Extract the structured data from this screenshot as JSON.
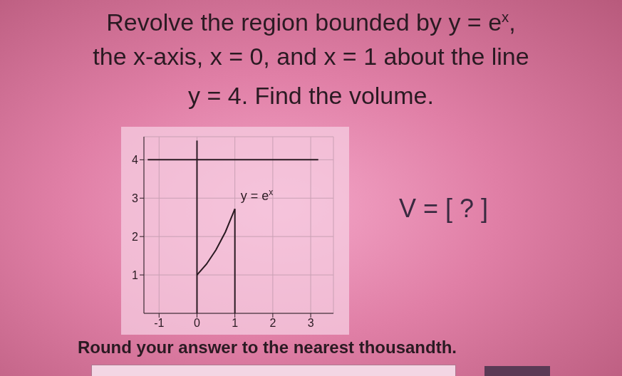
{
  "question": {
    "lines": [
      [
        {
          "text": "Revolve the region bounded by y = e"
        },
        {
          "sup": "x"
        },
        {
          "text": ","
        }
      ],
      [
        {
          "text": "the x-axis, x = 0, and x = 1 about the line"
        }
      ],
      [
        {
          "text": "y = 4. Find the volume."
        }
      ]
    ]
  },
  "chart_data": {
    "type": "line",
    "xlim": [
      -1.4,
      3.6
    ],
    "ylim": [
      0,
      4.6
    ],
    "xticks": [
      -1,
      0,
      1,
      2,
      3
    ],
    "yticks": [
      1,
      2,
      3,
      4
    ],
    "grid": true,
    "annotations": [
      {
        "segments": [
          {
            "text": "y = e"
          },
          {
            "sup": "x"
          }
        ],
        "x": 1.15,
        "y": 2.95
      }
    ],
    "series": [
      {
        "color": "#2a1a22",
        "x": [
          0,
          0.25,
          0.5,
          0.75,
          1
        ],
        "values": [
          1,
          1.28,
          1.65,
          2.12,
          2.72
        ]
      },
      {
        "color": "#2a1a22",
        "x": [
          1,
          1
        ],
        "values": [
          0,
          2.72
        ]
      },
      {
        "color": "#2a1a22",
        "x": [
          0,
          0
        ],
        "values": [
          0,
          4.5
        ]
      },
      {
        "color": "#2a1a22",
        "x": [
          -1.3,
          3.2
        ],
        "values": [
          4,
          4
        ]
      }
    ]
  },
  "answer_prompt": "V = [ ? ]",
  "instruction": "Round your answer to the nearest thousandth."
}
